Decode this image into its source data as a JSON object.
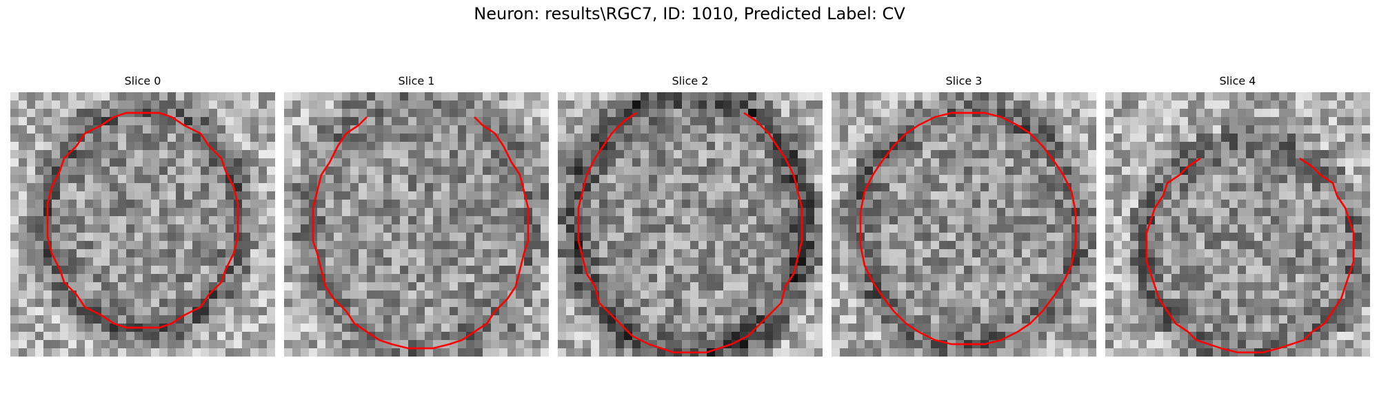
{
  "figure": {
    "title": "Neuron: results\\RGC7, ID: 1010, Predicted Label: CV"
  },
  "contour_color": "#ff0000",
  "image_colormap": "gray",
  "grid_size": 32,
  "panels": [
    {
      "title": "Slice 0",
      "seed": 11,
      "contour": {
        "center": [
          16,
          15.5
        ],
        "radius": [
          11.5,
          13
        ],
        "open": false
      },
      "rim": 0.55
    },
    {
      "title": "Slice 1",
      "seed": 23,
      "contour": {
        "center": [
          16.5,
          16
        ],
        "radius": [
          13,
          15
        ],
        "open": true
      },
      "rim": 0.3
    },
    {
      "title": "Slice 2",
      "seed": 37,
      "contour": {
        "center": [
          16,
          16
        ],
        "radius": [
          13.5,
          15.5
        ],
        "open": true
      },
      "rim": 0.85
    },
    {
      "title": "Slice 3",
      "seed": 51,
      "contour": {
        "center": [
          16.5,
          16.5
        ],
        "radius": [
          13,
          14
        ],
        "open": false
      },
      "rim": 0.5
    },
    {
      "title": "Slice 4",
      "seed": 67,
      "contour": {
        "center": [
          17.5,
          19
        ],
        "radius": [
          12.5,
          12.5
        ],
        "open": true
      },
      "rim": 0.45
    }
  ]
}
